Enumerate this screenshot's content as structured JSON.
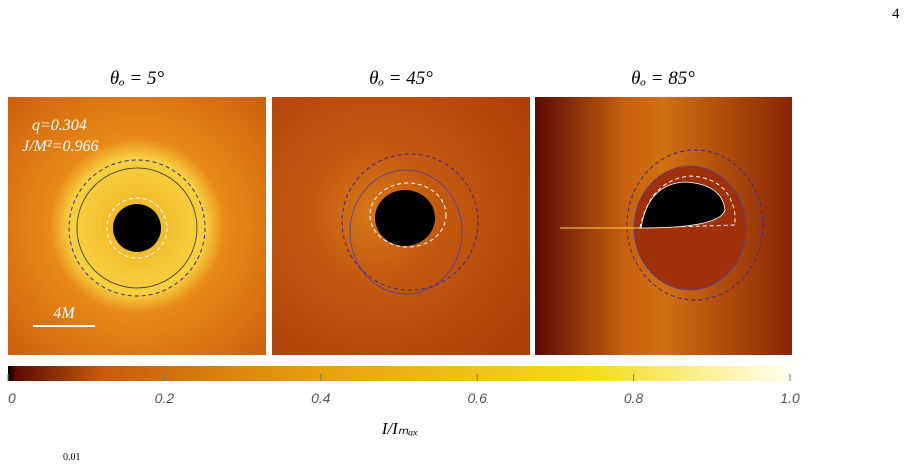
{
  "page_number": "4",
  "panels": [
    {
      "title": "θₒ = 5°",
      "annotations": [
        "q=0.304",
        "J/M²=0.966"
      ],
      "scale_label": "4M"
    },
    {
      "title": "θₒ = 45°"
    },
    {
      "title": "θₒ = 85°"
    }
  ],
  "colorbar": {
    "label": "I/Iₘₐₓ",
    "range": [
      0,
      {
        "value": 1,
        "label": "1.0"
      }
    ],
    "ticks": [
      0,
      0.2,
      0.4,
      0.6,
      0.8,
      {
        "value": 1,
        "label": "1.0"
      }
    ]
  },
  "footer_fragment": "0.01"
}
